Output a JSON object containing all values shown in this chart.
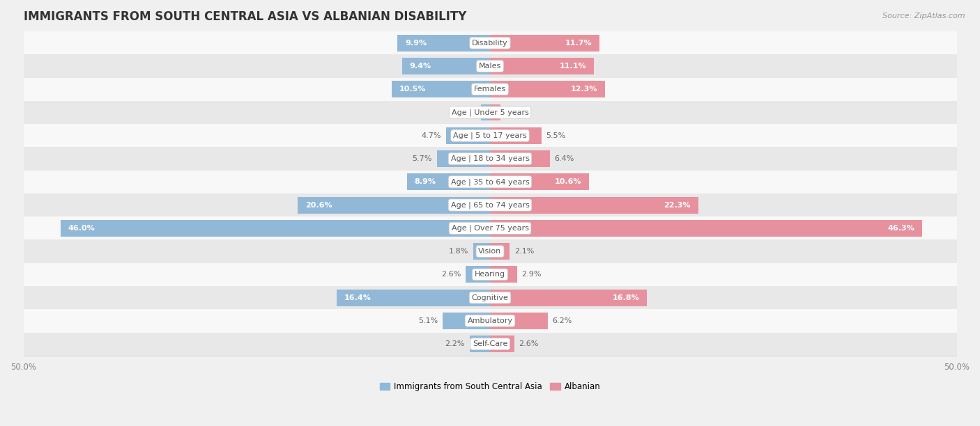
{
  "title": "IMMIGRANTS FROM SOUTH CENTRAL ASIA VS ALBANIAN DISABILITY",
  "source": "Source: ZipAtlas.com",
  "categories": [
    "Disability",
    "Males",
    "Females",
    "Age | Under 5 years",
    "Age | 5 to 17 years",
    "Age | 18 to 34 years",
    "Age | 35 to 64 years",
    "Age | 65 to 74 years",
    "Age | Over 75 years",
    "Vision",
    "Hearing",
    "Cognitive",
    "Ambulatory",
    "Self-Care"
  ],
  "left_values": [
    9.9,
    9.4,
    10.5,
    1.0,
    4.7,
    5.7,
    8.9,
    20.6,
    46.0,
    1.8,
    2.6,
    16.4,
    5.1,
    2.2
  ],
  "right_values": [
    11.7,
    11.1,
    12.3,
    1.1,
    5.5,
    6.4,
    10.6,
    22.3,
    46.3,
    2.1,
    2.9,
    16.8,
    6.2,
    2.6
  ],
  "left_color": "#92b8d8",
  "right_color": "#e8919e",
  "left_label": "Immigrants from South Central Asia",
  "right_label": "Albanian",
  "axis_max": 50.0,
  "background_color": "#f0f0f0",
  "row_bg_light": "#f8f8f8",
  "row_bg_dark": "#e8e8e8",
  "title_fontsize": 12,
  "source_fontsize": 8,
  "label_fontsize": 8.5,
  "value_fontsize": 8,
  "category_fontsize": 8
}
